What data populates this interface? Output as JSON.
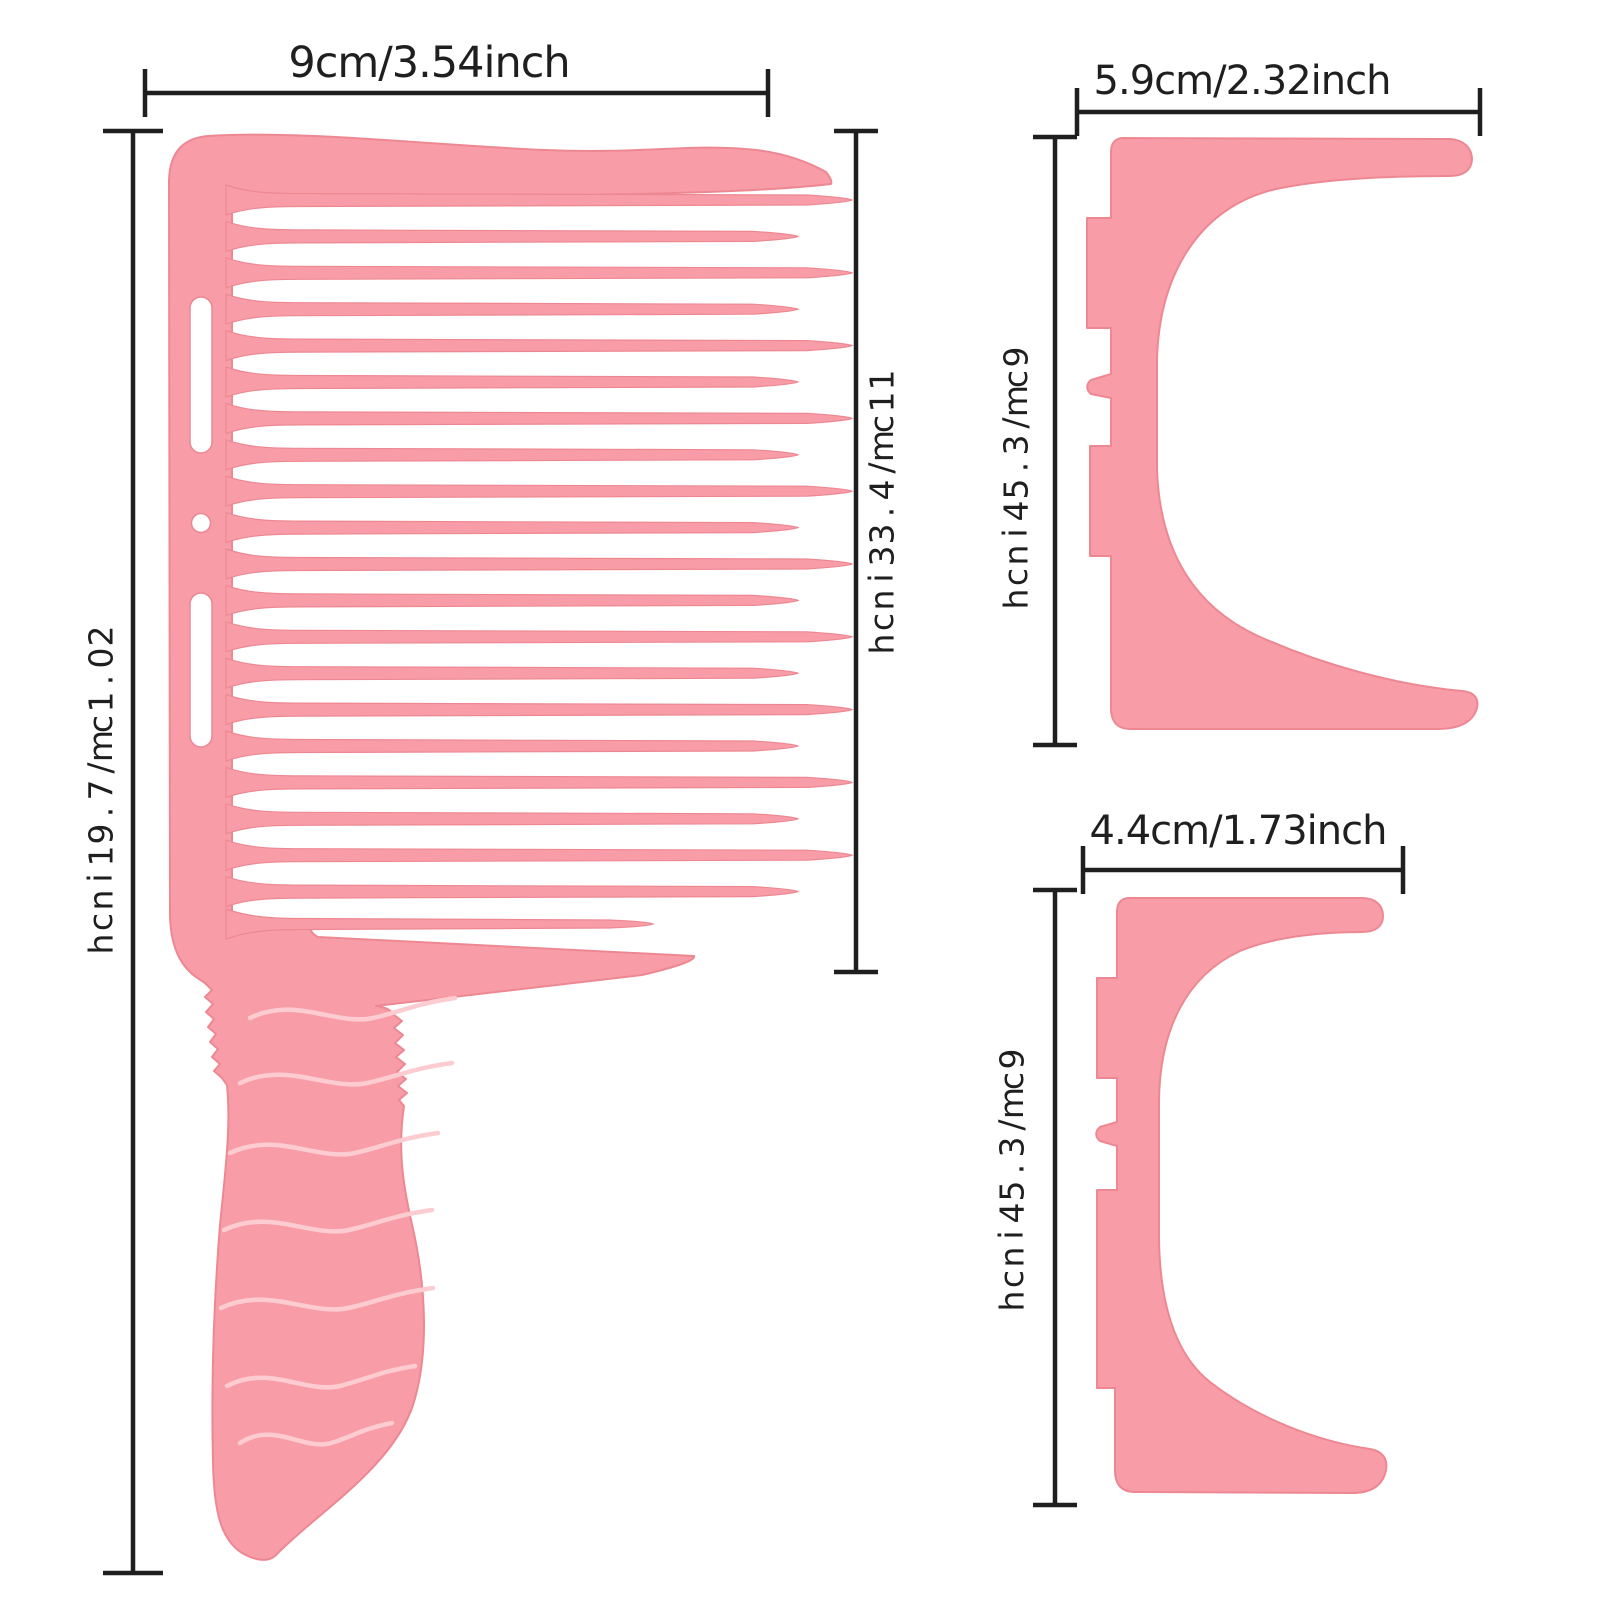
{
  "page": {
    "background": "#ffffff",
    "description": "Product dimension diagram of a pink barber fade comb with two C-shaped clip attachments"
  },
  "product": {
    "fill": "#f89da7",
    "edge": "#ed8893",
    "ridge_highlight": "#fdccd1",
    "cutout": "#ffffff"
  },
  "annotations": {
    "line_color": "#1f1f1f",
    "comb": {
      "width_label": "9cm/3.54inch",
      "head_height_label": "11cm/4.33inch",
      "total_height_label": "20.1cm/7.91inch"
    },
    "clip_large": {
      "width_label": "5.9cm/2.32inch",
      "height_label": "9cm/3.54inch"
    },
    "clip_small": {
      "width_label": "4.4cm/1.73inch",
      "height_label": "9cm/3.54inch"
    }
  }
}
